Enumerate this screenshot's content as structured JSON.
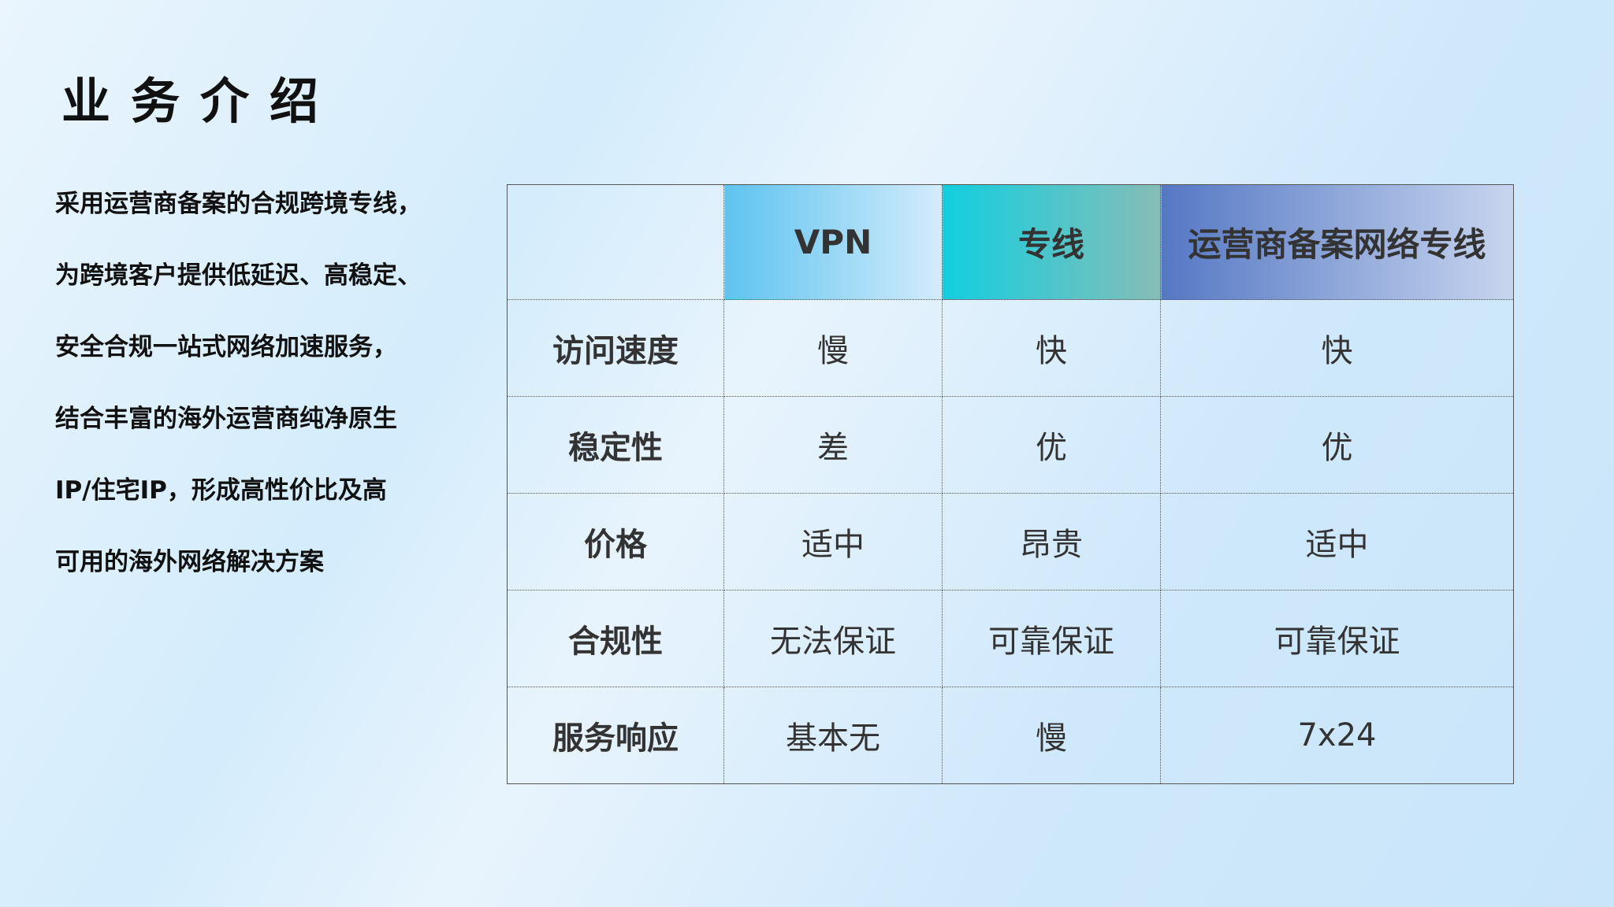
{
  "title": "业务介绍",
  "description": [
    "采用运营商备案的合规跨境专线，",
    "为跨境客户提供低延迟、高稳定、",
    "安全合规一站式网络加速服务，",
    "结合丰富的海外运营商纯净原生",
    "IP/住宅IP，形成高性价比及高",
    "可用的海外网络解决方案"
  ],
  "table": {
    "headers": [
      "",
      "VPN",
      "专线",
      "运营商备案网络专线"
    ],
    "rows": [
      [
        "访问速度",
        "慢",
        "快",
        "快"
      ],
      [
        "稳定性",
        "差",
        "优",
        "优"
      ],
      [
        "价格",
        "适中",
        "昂贵",
        "适中"
      ],
      [
        "合规性",
        "无法保证",
        "可靠保证",
        "可靠保证"
      ],
      [
        "服务响应",
        "基本无",
        "慢",
        "7x24"
      ]
    ]
  },
  "colors": {
    "vpn_header": "#5ec3ef",
    "line_header": "#12cfdf",
    "carrier_header": "#5578c4"
  }
}
